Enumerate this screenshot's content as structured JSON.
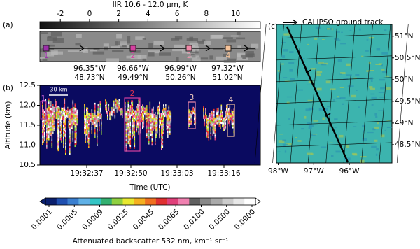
{
  "chart_data": [
    {
      "type": "colorbar",
      "label": "(a)",
      "title": "IIR 10.6 - 12.0 μm, K",
      "xlim": [
        -3.4,
        11.7
      ],
      "xticks": [
        -2,
        0,
        2,
        4,
        6,
        8,
        10
      ],
      "markers": [
        {
          "label": "1",
          "color": "#9b2fa8"
        },
        {
          "label": "2",
          "color": "#d53fa0"
        },
        {
          "label": "3",
          "color": "#f08aa8"
        },
        {
          "label": "4",
          "color": "#f5c39a"
        }
      ],
      "locations": [
        {
          "lon": "96.35°W",
          "lat": "48.73°N"
        },
        {
          "lon": "96.66°W",
          "lat": "49.49°N"
        },
        {
          "lon": "96.99°W",
          "lat": "50.26°N"
        },
        {
          "lon": "97.32°W",
          "lat": "51.02°N"
        }
      ]
    },
    {
      "type": "curtain",
      "label": "(b)",
      "ylabel": "Altitude (km)",
      "xlabel": "Time (UTC)",
      "ylim": [
        10.5,
        12.5
      ],
      "yticks": [
        10.5,
        {
          "value": 11,
          "label": "11.0"
        },
        11.5,
        {
          "value": 12,
          "label": "12.0"
        },
        12.5
      ],
      "categories": [
        "19:32:37",
        "19:32:50",
        "19:33:03",
        "19:33:16"
      ],
      "scale_label": "30 km",
      "boxes": [
        "1",
        "2",
        "3",
        "4"
      ]
    },
    {
      "type": "colorbar_discrete",
      "title": "Attenuated backscatter 532 nm, km⁻¹ sr⁻¹",
      "categories": [
        "0.0001",
        "0.0005",
        "0.0009",
        "0.0025",
        "0.0045",
        "0.0065",
        "0.0100",
        "0.0500",
        "0.0900"
      ],
      "colors": [
        "#0a1f6e",
        "#1f4fb0",
        "#3a7fd0",
        "#5fb0e6",
        "#33c4c4",
        "#33b070",
        "#8fd040",
        "#e8e830",
        "#f5b020",
        "#f07020",
        "#e03030",
        "#e0407a",
        "#f080b0",
        "#606060",
        "#888888",
        "#aaaaaa",
        "#cccccc",
        "#e8e8e8",
        "#ffffff"
      ]
    },
    {
      "type": "map",
      "label": "(c)",
      "legend": "CALIPSO ground track",
      "xlim": [
        -98.05,
        -94.8
      ],
      "ylim": [
        48.08,
        51.27
      ],
      "xticks": [
        {
          "value": -98,
          "label": "98°W"
        },
        {
          "value": -97,
          "label": "97°W"
        },
        {
          "value": -96,
          "label": "96°W"
        }
      ],
      "yticks": [
        {
          "value": 48.5,
          "label": "48.5°N"
        },
        {
          "value": 49,
          "label": "49°N"
        },
        {
          "value": 49.5,
          "label": "49.5°N"
        },
        {
          "value": 50,
          "label": "50°N"
        },
        {
          "value": 50.5,
          "label": "50.5°N"
        },
        {
          "value": 51,
          "label": "51°N"
        }
      ]
    }
  ]
}
